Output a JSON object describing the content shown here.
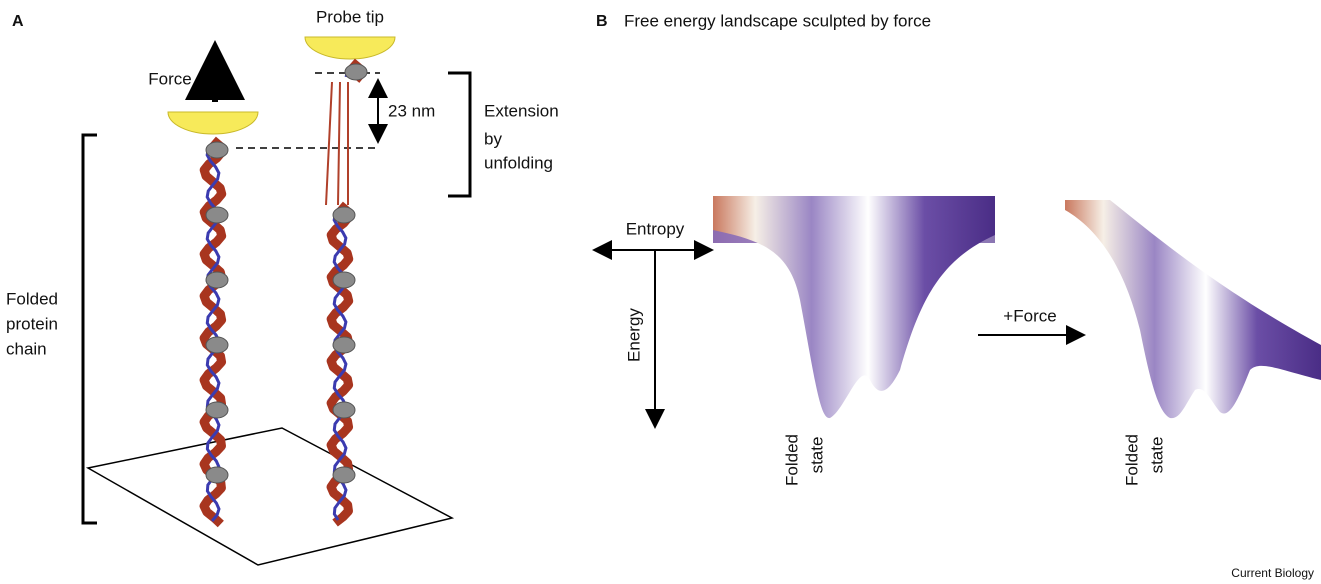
{
  "panel_a": {
    "label": "A",
    "probe_tip": "Probe tip",
    "force": "Force",
    "extension_distance": "23 nm",
    "extension_label": [
      "Extension",
      "by",
      "unfolding"
    ],
    "chain_label": [
      "Folded",
      "protein",
      "chain"
    ]
  },
  "panel_b": {
    "label": "B",
    "title": "Free energy landscape sculpted by force",
    "entropy": "Entropy",
    "energy": "Energy",
    "force": "+Force",
    "folded_state_left": [
      "Folded",
      "state"
    ],
    "folded_state_right": [
      "Folded",
      "state"
    ]
  },
  "footer": "Current Biology"
}
